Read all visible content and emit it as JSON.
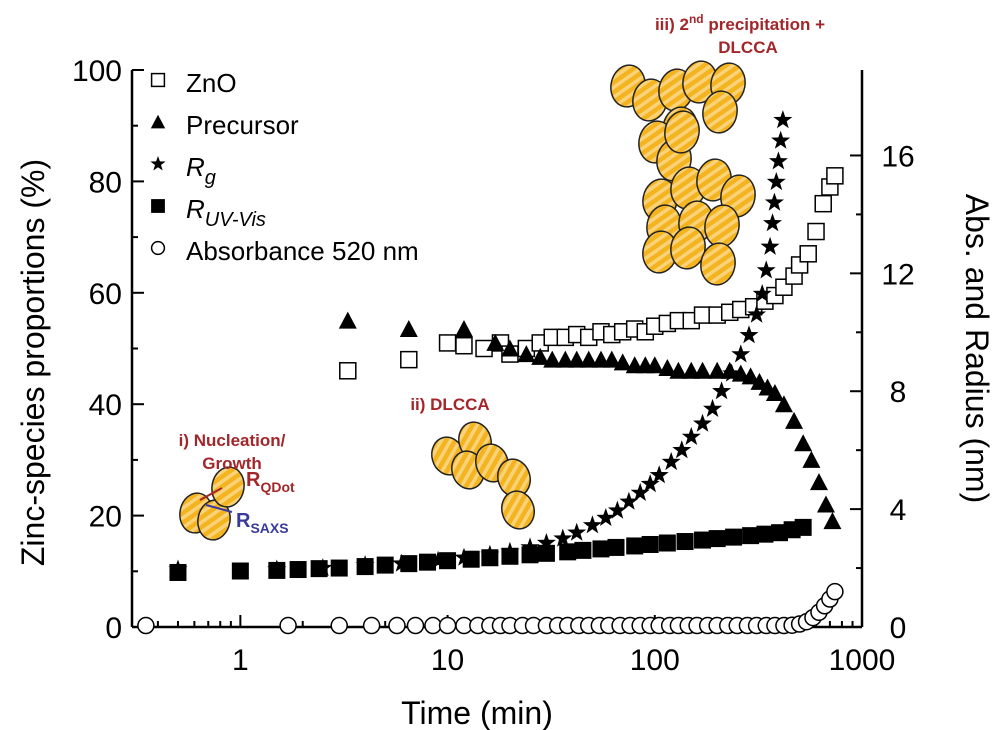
{
  "chart_data": {
    "type": "scatter",
    "xlabel": "Time (min)",
    "ylabel_left": "Zinc-species proportions (%)",
    "ylabel_right": "Abs. and Radius (nm)",
    "x_scale": "log",
    "xlim": [
      0.3,
      1000
    ],
    "ylim_left": [
      0,
      100
    ],
    "ylim_right": [
      0,
      18.9
    ],
    "x_ticks": [
      1,
      10,
      100,
      1000
    ],
    "x_tick_labels": [
      "1",
      "10",
      "100",
      "1000"
    ],
    "y_left_ticks": [
      0,
      20,
      40,
      60,
      80,
      100
    ],
    "y_left_tick_labels": [
      "0",
      "20",
      "40",
      "60",
      "80",
      "100"
    ],
    "y_right_ticks": [
      0,
      4,
      8,
      12,
      16
    ],
    "y_right_tick_labels": [
      "0",
      "4",
      "8",
      "12",
      "16"
    ],
    "grid": false,
    "legend_position": "top-left",
    "legend": [
      {
        "marker": "open-square",
        "label": "ZnO"
      },
      {
        "marker": "filled-triangle",
        "label": "Precursor"
      },
      {
        "marker": "star",
        "label": "R",
        "sub": "g",
        "italic": true
      },
      {
        "marker": "filled-square",
        "label": "R",
        "sub": "UV-Vis",
        "italic": true
      },
      {
        "marker": "open-circle",
        "label": "Absorbance 520 nm"
      }
    ],
    "series": [
      {
        "name": "ZnO",
        "marker": "open-square",
        "axis": "left",
        "points": [
          [
            3.3,
            46
          ],
          [
            6.5,
            48
          ],
          [
            10,
            51
          ],
          [
            12,
            50.5
          ],
          [
            15,
            50
          ],
          [
            18,
            51
          ],
          [
            20,
            49
          ],
          [
            24,
            50
          ],
          [
            28,
            51
          ],
          [
            32,
            52
          ],
          [
            37,
            52
          ],
          [
            42,
            52.5
          ],
          [
            48,
            52
          ],
          [
            55,
            53
          ],
          [
            62,
            52.5
          ],
          [
            70,
            53
          ],
          [
            80,
            53.5
          ],
          [
            90,
            53
          ],
          [
            100,
            54
          ],
          [
            115,
            54.5
          ],
          [
            130,
            55
          ],
          [
            150,
            55
          ],
          [
            170,
            56
          ],
          [
            200,
            56
          ],
          [
            230,
            56.5
          ],
          [
            260,
            57
          ],
          [
            300,
            57.5
          ],
          [
            340,
            58.5
          ],
          [
            380,
            59.5
          ],
          [
            420,
            61
          ],
          [
            470,
            63
          ],
          [
            500,
            65
          ],
          [
            550,
            67
          ],
          [
            600,
            71
          ],
          [
            650,
            76
          ],
          [
            700,
            79
          ],
          [
            740,
            81
          ]
        ]
      },
      {
        "name": "Precursor",
        "marker": "filled-triangle",
        "axis": "left",
        "points": [
          [
            3.3,
            55
          ],
          [
            6.5,
            53.5
          ],
          [
            12,
            53.5
          ],
          [
            17,
            51
          ],
          [
            20,
            50
          ],
          [
            24,
            49
          ],
          [
            28,
            48.5
          ],
          [
            32,
            48
          ],
          [
            37,
            48
          ],
          [
            42,
            48
          ],
          [
            48,
            48
          ],
          [
            55,
            48
          ],
          [
            62,
            48
          ],
          [
            70,
            47.5
          ],
          [
            80,
            47
          ],
          [
            90,
            47
          ],
          [
            100,
            47
          ],
          [
            115,
            46.5
          ],
          [
            130,
            46
          ],
          [
            150,
            46
          ],
          [
            170,
            46
          ],
          [
            200,
            46
          ],
          [
            230,
            46
          ],
          [
            260,
            45.5
          ],
          [
            290,
            45
          ],
          [
            320,
            44
          ],
          [
            350,
            43
          ],
          [
            380,
            42
          ],
          [
            420,
            40
          ],
          [
            470,
            37
          ],
          [
            520,
            33
          ],
          [
            570,
            30
          ],
          [
            620,
            26
          ],
          [
            670,
            22
          ],
          [
            720,
            19
          ]
        ]
      },
      {
        "name": "Rg",
        "marker": "star",
        "axis": "right",
        "points": [
          [
            0.5,
            1.95
          ],
          [
            1.5,
            1.95
          ],
          [
            2.5,
            2.0
          ],
          [
            4,
            2.1
          ],
          [
            6,
            2.15
          ],
          [
            9,
            2.25
          ],
          [
            12,
            2.35
          ],
          [
            16,
            2.45
          ],
          [
            20,
            2.55
          ],
          [
            25,
            2.7
          ],
          [
            30,
            2.85
          ],
          [
            36,
            3.0
          ],
          [
            42,
            3.2
          ],
          [
            50,
            3.45
          ],
          [
            58,
            3.7
          ],
          [
            66,
            3.95
          ],
          [
            75,
            4.25
          ],
          [
            85,
            4.55
          ],
          [
            95,
            4.85
          ],
          [
            105,
            5.15
          ],
          [
            120,
            5.6
          ],
          [
            135,
            6.0
          ],
          [
            150,
            6.45
          ],
          [
            170,
            6.9
          ],
          [
            190,
            7.4
          ],
          [
            210,
            8.0
          ],
          [
            235,
            8.6
          ],
          [
            260,
            9.25
          ],
          [
            285,
            9.9
          ],
          [
            310,
            10.6
          ],
          [
            330,
            11.3
          ],
          [
            345,
            12.1
          ],
          [
            360,
            12.9
          ],
          [
            370,
            13.7
          ],
          [
            378,
            14.4
          ],
          [
            386,
            15.1
          ],
          [
            395,
            15.8
          ],
          [
            405,
            16.5
          ],
          [
            415,
            17.2
          ]
        ]
      },
      {
        "name": "RUV-Vis",
        "marker": "filled-square",
        "axis": "right",
        "points": [
          [
            0.5,
            1.85
          ],
          [
            1,
            1.9
          ],
          [
            1.5,
            1.92
          ],
          [
            1.9,
            1.95
          ],
          [
            2.4,
            1.98
          ],
          [
            3,
            2.0
          ],
          [
            4,
            2.05
          ],
          [
            5,
            2.1
          ],
          [
            6.5,
            2.15
          ],
          [
            8,
            2.2
          ],
          [
            10,
            2.25
          ],
          [
            13,
            2.3
          ],
          [
            16,
            2.35
          ],
          [
            20,
            2.4
          ],
          [
            25,
            2.45
          ],
          [
            30,
            2.5
          ],
          [
            38,
            2.55
          ],
          [
            45,
            2.6
          ],
          [
            55,
            2.65
          ],
          [
            65,
            2.7
          ],
          [
            80,
            2.75
          ],
          [
            95,
            2.8
          ],
          [
            115,
            2.85
          ],
          [
            140,
            2.9
          ],
          [
            170,
            2.95
          ],
          [
            200,
            3.0
          ],
          [
            240,
            3.05
          ],
          [
            290,
            3.1
          ],
          [
            340,
            3.15
          ],
          [
            400,
            3.2
          ],
          [
            460,
            3.3
          ],
          [
            520,
            3.38
          ]
        ]
      },
      {
        "name": "Absorbance 520 nm",
        "marker": "open-circle",
        "axis": "right",
        "points": [
          [
            0.35,
            0.05
          ],
          [
            1.7,
            0.05
          ],
          [
            3,
            0.05
          ],
          [
            4.3,
            0.05
          ],
          [
            5.7,
            0.05
          ],
          [
            7,
            0.05
          ],
          [
            8.5,
            0.05
          ],
          [
            10,
            0.05
          ],
          [
            12,
            0.05
          ],
          [
            14,
            0.05
          ],
          [
            16,
            0.05
          ],
          [
            18,
            0.05
          ],
          [
            20,
            0.05
          ],
          [
            23,
            0.05
          ],
          [
            26,
            0.05
          ],
          [
            30,
            0.05
          ],
          [
            34,
            0.05
          ],
          [
            38,
            0.05
          ],
          [
            43,
            0.05
          ],
          [
            48,
            0.05
          ],
          [
            54,
            0.05
          ],
          [
            60,
            0.05
          ],
          [
            68,
            0.05
          ],
          [
            76,
            0.05
          ],
          [
            85,
            0.05
          ],
          [
            95,
            0.05
          ],
          [
            105,
            0.05
          ],
          [
            118,
            0.05
          ],
          [
            130,
            0.05
          ],
          [
            145,
            0.05
          ],
          [
            160,
            0.05
          ],
          [
            180,
            0.05
          ],
          [
            200,
            0.05
          ],
          [
            225,
            0.05
          ],
          [
            250,
            0.05
          ],
          [
            280,
            0.05
          ],
          [
            310,
            0.05
          ],
          [
            345,
            0.05
          ],
          [
            380,
            0.05
          ],
          [
            420,
            0.05
          ],
          [
            460,
            0.06
          ],
          [
            500,
            0.1
          ],
          [
            540,
            0.18
          ],
          [
            580,
            0.32
          ],
          [
            620,
            0.5
          ],
          [
            660,
            0.72
          ],
          [
            700,
            0.95
          ],
          [
            740,
            1.2
          ]
        ]
      }
    ],
    "annotations": [
      {
        "id": "nucleation",
        "text": "i) Nucleation/",
        "text2": "Growth",
        "color": "#a3262a"
      },
      {
        "id": "dlcca",
        "text": "ii) DLCCA",
        "color": "#a3262a"
      },
      {
        "id": "precip",
        "text_pre": "iii) 2",
        "sup": "nd",
        "text_post": " precipitation +",
        "text2": "DLCCA",
        "color": "#a3262a"
      },
      {
        "id": "rqdot",
        "main": "R",
        "sub": "QDot",
        "color": "#a3262a"
      },
      {
        "id": "rsaxs",
        "main": "R",
        "sub": "SAXS",
        "color": "#3a3a9c"
      }
    ],
    "colors": {
      "particle_fill": "#f4b41f",
      "particle_stripe": "#f9d27a",
      "particle_edge": "#222222",
      "annotation_red": "#a3262a",
      "annotation_blue": "#3a3a9c"
    }
  }
}
